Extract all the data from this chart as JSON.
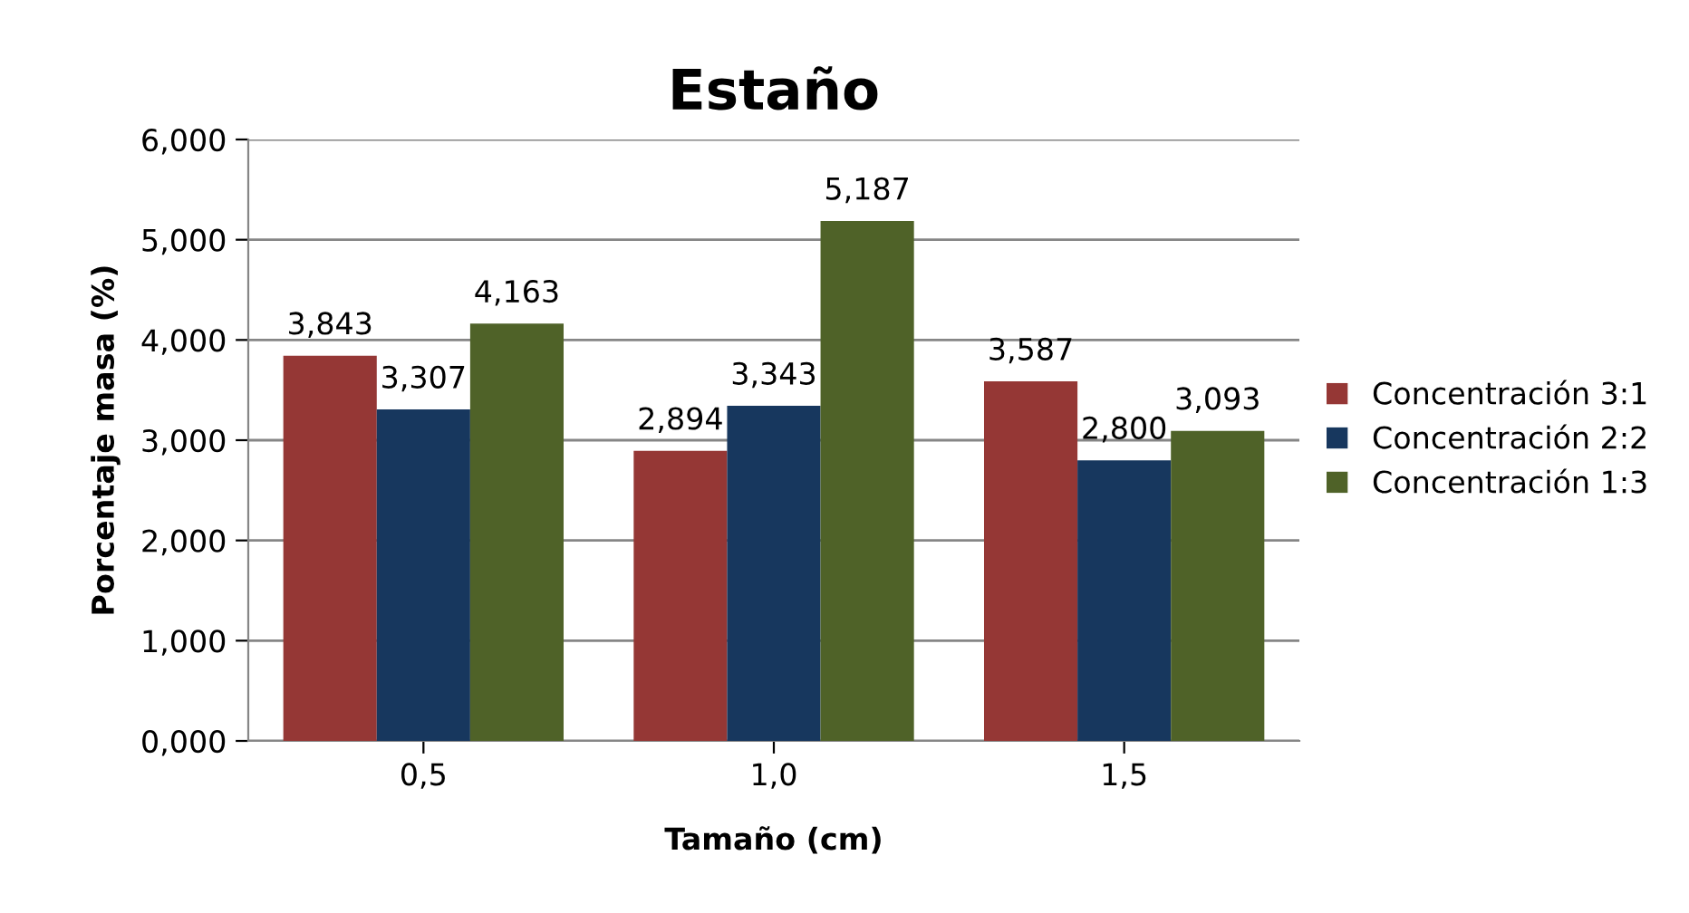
{
  "chart_data": {
    "type": "bar",
    "title": "Estaño",
    "xlabel": "Tamaño (cm)",
    "ylabel": "Porcentaje masa (%)",
    "categories": [
      "0,5",
      "1,0",
      "1,5"
    ],
    "series": [
      {
        "name": "Concentración 3:1",
        "color": "#953735",
        "values": [
          3.843,
          2.894,
          3.587
        ],
        "value_labels": [
          "3,843",
          "2,894",
          "3,587"
        ]
      },
      {
        "name": "Concentración 2:2",
        "color": "#17375e",
        "values": [
          3.307,
          3.343,
          2.8
        ],
        "value_labels": [
          "3,307",
          "3,343",
          "2,800"
        ]
      },
      {
        "name": "Concentración 1:3",
        "color": "#4f6228",
        "values": [
          4.163,
          5.187,
          3.093
        ],
        "value_labels": [
          "4,163",
          "5,187",
          "3,093"
        ]
      }
    ],
    "ylim": [
      0,
      6
    ],
    "yticks": [
      {
        "value": 0,
        "label": "0,000"
      },
      {
        "value": 1,
        "label": "1,000"
      },
      {
        "value": 2,
        "label": "2,000"
      },
      {
        "value": 3,
        "label": "3,000"
      },
      {
        "value": 4,
        "label": "4,000"
      },
      {
        "value": 5,
        "label": "5,000"
      },
      {
        "value": 6,
        "label": "6,000"
      }
    ],
    "grid": "y",
    "legend": "right"
  }
}
